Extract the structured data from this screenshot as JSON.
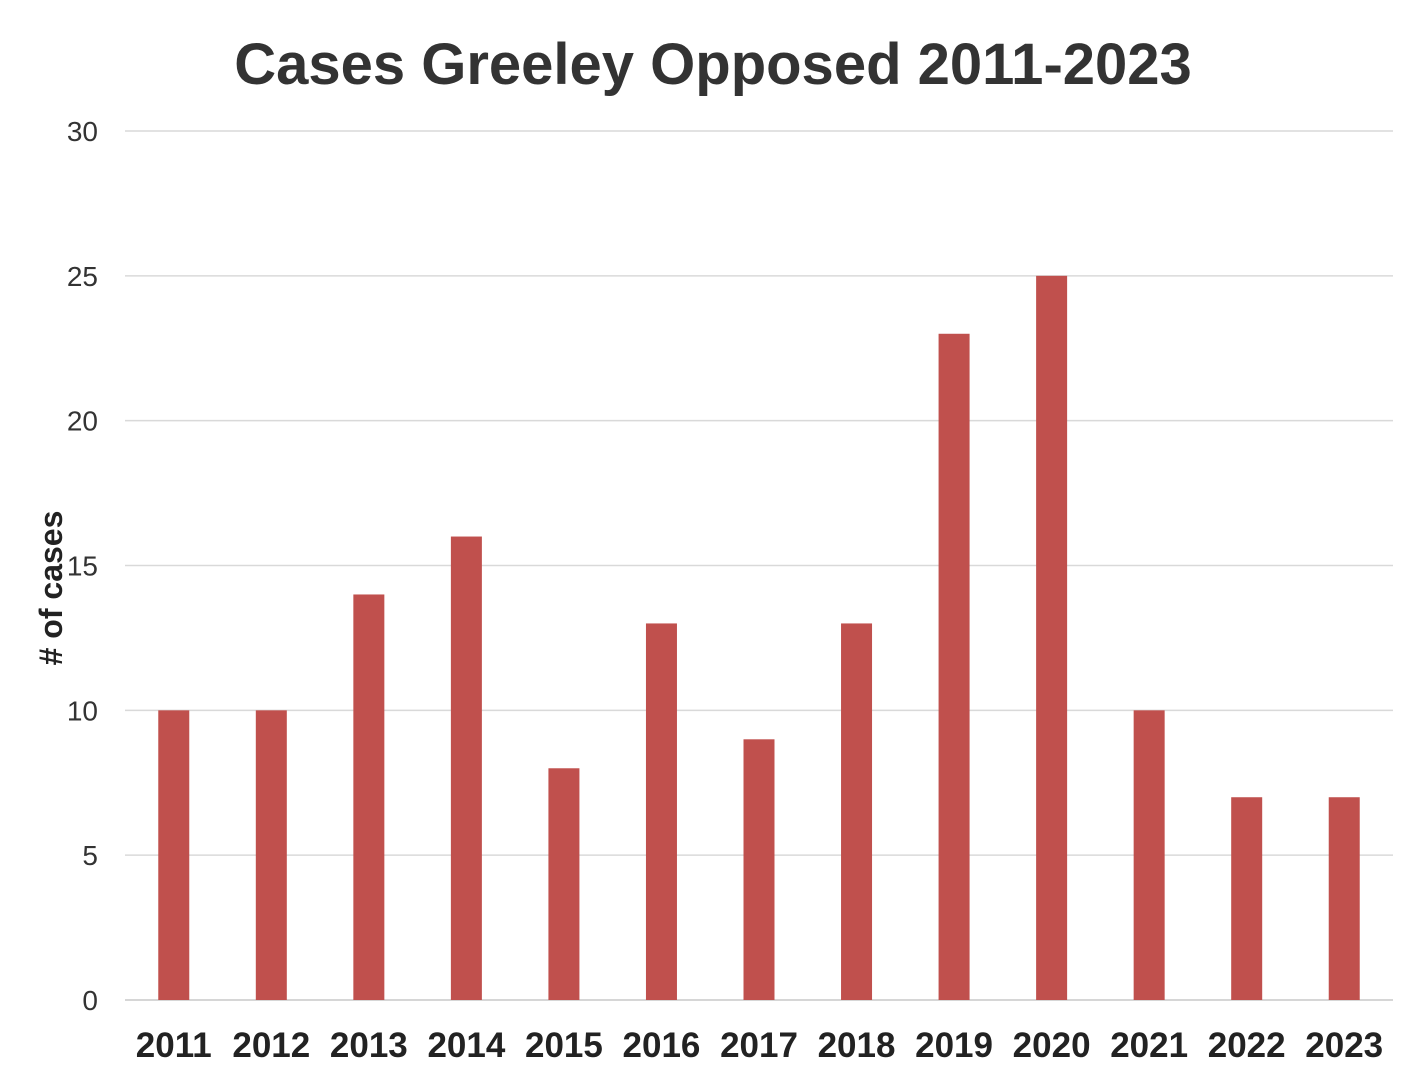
{
  "chart_data": {
    "type": "bar",
    "title": "Cases Greeley Opposed 2011-2023",
    "xlabel": "",
    "ylabel": "# of cases",
    "categories": [
      "2011",
      "2012",
      "2013",
      "2014",
      "2015",
      "2016",
      "2017",
      "2018",
      "2019",
      "2020",
      "2021",
      "2022",
      "2023"
    ],
    "values": [
      10,
      10,
      14,
      16,
      8,
      13,
      9,
      13,
      23,
      25,
      10,
      7,
      7
    ],
    "ylim": [
      0,
      30
    ],
    "yticks": [
      0,
      5,
      10,
      15,
      20,
      25,
      30
    ],
    "grid": true,
    "legend": "none",
    "bar_color": "#c0504d"
  }
}
